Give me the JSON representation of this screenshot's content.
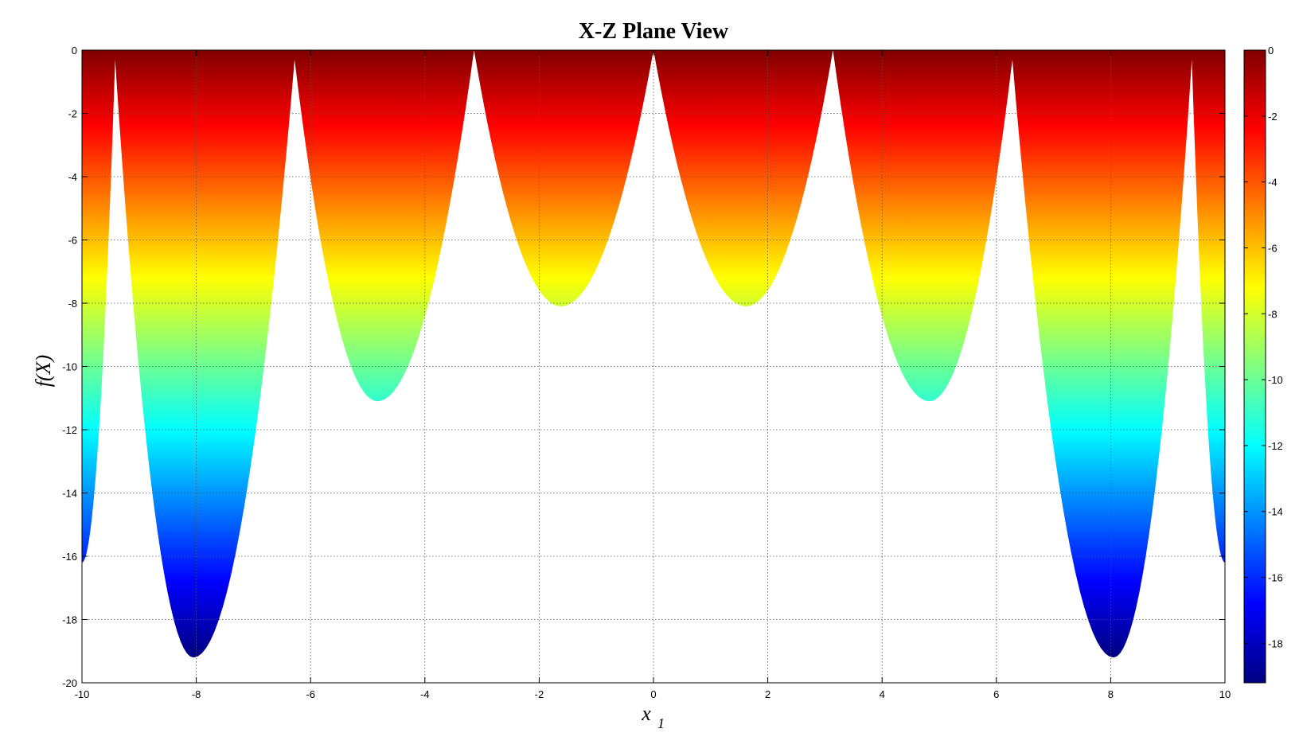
{
  "chart_data": {
    "type": "area",
    "title": "X-Z Plane View",
    "xlabel": "x",
    "xlabel_sub": "1",
    "ylabel": "f(X)",
    "xlim": [
      -10,
      10
    ],
    "ylim": [
      -20,
      0
    ],
    "grid": true,
    "x_ticks": [
      -10,
      -8,
      -6,
      -4,
      -2,
      0,
      2,
      4,
      6,
      8,
      10
    ],
    "y_ticks": [
      0,
      -2,
      -4,
      -6,
      -8,
      -10,
      -12,
      -14,
      -16,
      -18,
      -20
    ],
    "colorbar": {
      "colormap": "jet",
      "limits": [
        -19.2,
        0
      ],
      "ticks": [
        0,
        -2,
        -4,
        -6,
        -8,
        -10,
        -12,
        -14,
        -16,
        -18
      ]
    },
    "envelope": {
      "description_free": true,
      "x": [
        -10,
        -9.42,
        -8.05,
        -6.28,
        -4.83,
        -3.14,
        -1.62,
        0,
        1.62,
        3.14,
        4.83,
        6.28,
        8.05,
        9.42,
        10
      ],
      "y": [
        -16.2,
        -0.3,
        -19.2,
        -0.3,
        -11.1,
        0,
        -8.1,
        0,
        -8.1,
        0,
        -11.1,
        -0.3,
        -19.2,
        -0.3,
        -16.2
      ]
    },
    "colors": {
      "jet_stops": [
        "#800000",
        "#ff0000",
        "#ffff00",
        "#00ffff",
        "#0000ff",
        "#000080"
      ]
    }
  }
}
